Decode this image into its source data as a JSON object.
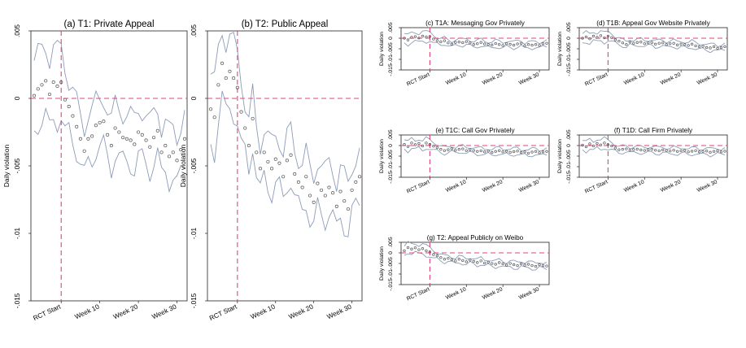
{
  "figure": {
    "background": "#ffffff",
    "accent_dash": "#e0457b",
    "ci_color": "#8c9cb8",
    "point_color": "#555555"
  },
  "chart_data": [
    {
      "type": "line",
      "title": "(a) T1: Private Appeal",
      "ylabel": "Daily violation",
      "ylim": [
        -0.015,
        0.005
      ],
      "yticks": [
        ".005",
        "0",
        "-.005",
        "-.01",
        "-.015"
      ],
      "xticks": [
        "RCT Start",
        "Week 10",
        "Week 20",
        "Week 30"
      ],
      "grid": false,
      "series": [
        {
          "values": [
            0.0002,
            0.0007,
            0.001,
            0.0013,
            0.0003,
            0.0012,
            0.0009,
            0.0012,
            -0.0001,
            -0.0006,
            -0.0013,
            -0.0021,
            -0.003,
            -0.0039,
            -0.003,
            -0.0028,
            -0.002,
            -0.0018,
            -0.0017,
            -0.0027,
            -0.0035,
            -0.0022,
            -0.0025,
            -0.0029,
            -0.003,
            -0.0031,
            -0.0034,
            -0.0025,
            -0.0027,
            -0.0031,
            -0.0036,
            -0.0029,
            -0.0024,
            -0.004,
            -0.0035,
            -0.0043,
            -0.004,
            -0.0046,
            -0.0038,
            -0.003
          ]
        }
      ]
    },
    {
      "type": "line",
      "title": "(b) T2: Public Appeal",
      "ylabel": "Daily violation",
      "ylim": [
        -0.015,
        0.005
      ],
      "yticks": [
        ".005",
        "0",
        "-.005",
        "-.01",
        "-.015"
      ],
      "xticks": [
        "RCT Start",
        "Week 10",
        "Week 20",
        "Week 30"
      ],
      "grid": false,
      "series": [
        {
          "values": [
            -0.0008,
            -0.0014,
            0.001,
            0.0026,
            0.0015,
            0.002,
            0.0015,
            0.0008,
            -0.001,
            -0.0022,
            -0.0035,
            -0.0015,
            -0.004,
            -0.0052,
            -0.004,
            -0.0047,
            -0.0052,
            -0.0045,
            -0.0048,
            -0.0058,
            -0.0046,
            -0.0042,
            -0.0056,
            -0.0062,
            -0.0066,
            -0.0058,
            -0.0072,
            -0.0077,
            -0.0063,
            -0.0068,
            -0.0072,
            -0.0066,
            -0.007,
            -0.008,
            -0.0069,
            -0.0076,
            -0.0082,
            -0.0068,
            -0.0062,
            -0.0058
          ]
        }
      ]
    },
    {
      "type": "line",
      "title": "(c) T1A: Messaging Gov Privately",
      "ylabel": "Daily violation",
      "ylim": [
        -0.015,
        0.005
      ],
      "yticks": [
        ".005",
        "0",
        "-.005",
        "-.01",
        "-.015"
      ],
      "xticks": [
        "RCT Start",
        "Week 10",
        "Week 20",
        "Week 30"
      ],
      "grid": false,
      "series": [
        {
          "values": [
            0.0,
            -0.0008,
            0.0004,
            0.0007,
            0.0001,
            0.001,
            0.0006,
            0.0008,
            -0.0004,
            -0.0012,
            -0.0017,
            -0.0012,
            -0.0022,
            -0.0028,
            -0.002,
            -0.0018,
            -0.0021,
            -0.0016,
            -0.0022,
            -0.003,
            -0.0026,
            -0.002,
            -0.0027,
            -0.003,
            -0.0032,
            -0.0025,
            -0.003,
            -0.0034,
            -0.0026,
            -0.0029,
            -0.0033,
            -0.0027,
            -0.0024,
            -0.0036,
            -0.003,
            -0.0033,
            -0.003,
            -0.0034,
            -0.0026,
            -0.0024
          ]
        }
      ]
    },
    {
      "type": "line",
      "title": "(d) T1B: Appeal Gov Website Privately",
      "ylabel": "Daily violation",
      "ylim": [
        -0.015,
        0.005
      ],
      "yticks": [
        ".005",
        "0",
        "-.005",
        "-.01",
        "-.015"
      ],
      "xticks": [
        "RCT Start",
        "Week 10",
        "Week 20",
        "Week 30"
      ],
      "grid": false,
      "series": [
        {
          "values": [
            0.0,
            0.0006,
            -0.0003,
            0.001,
            0.0004,
            0.0012,
            0.0002,
            0.001,
            0.0003,
            -0.0008,
            -0.0014,
            -0.0022,
            -0.003,
            -0.0018,
            -0.0024,
            -0.002,
            -0.0018,
            -0.0026,
            -0.0022,
            -0.002,
            -0.0028,
            -0.0024,
            -0.0022,
            -0.003,
            -0.0026,
            -0.0024,
            -0.0032,
            -0.0028,
            -0.003,
            -0.0034,
            -0.0028,
            -0.0036,
            -0.004,
            -0.0038,
            -0.0044,
            -0.0046,
            -0.004,
            -0.0048,
            -0.0044,
            -0.004
          ]
        }
      ]
    },
    {
      "type": "line",
      "title": "(e) T1C: Call Gov Privately",
      "ylabel": "Daily violation",
      "ylim": [
        -0.015,
        0.005
      ],
      "yticks": [
        ".005",
        "0",
        "-.005",
        "-.01",
        "-.015"
      ],
      "xticks": [
        "RCT Start",
        "Week 10",
        "Week 20",
        "Week 30"
      ],
      "grid": false,
      "series": [
        {
          "values": [
            0.0005,
            -0.0005,
            0.0012,
            0.0004,
            0.001,
            -0.0002,
            0.0012,
            0.0005,
            -0.0003,
            -0.001,
            -0.0018,
            -0.0024,
            -0.002,
            -0.0015,
            -0.0022,
            -0.0018,
            -0.0016,
            -0.0024,
            -0.002,
            -0.0023,
            -0.0028,
            -0.0025,
            -0.003,
            -0.0026,
            -0.0033,
            -0.0028,
            -0.0024,
            -0.003,
            -0.0027,
            -0.0032,
            -0.0029,
            -0.0026,
            -0.0033,
            -0.003,
            -0.0036,
            -0.0031,
            -0.0028,
            -0.0034,
            -0.003,
            -0.0028
          ]
        }
      ]
    },
    {
      "type": "line",
      "title": "(f) T1D: Call Firm Privately",
      "ylabel": "Daily violation",
      "ylim": [
        -0.015,
        0.005
      ],
      "yticks": [
        ".005",
        "0",
        "-.005",
        "-.01",
        "-.015"
      ],
      "xticks": [
        "RCT Start",
        "Week 10",
        "Week 20",
        "Week 30"
      ],
      "grid": false,
      "series": [
        {
          "values": [
            0.0002,
            -0.0006,
            0.0008,
            -0.0002,
            0.001,
            0.0003,
            0.0012,
            0.0004,
            -0.0002,
            -0.0012,
            -0.002,
            -0.0018,
            -0.0016,
            -0.0022,
            -0.0019,
            -0.0017,
            -0.0021,
            -0.0023,
            -0.002,
            -0.0018,
            -0.0022,
            -0.0025,
            -0.0021,
            -0.0024,
            -0.0026,
            -0.0022,
            -0.0028,
            -0.0025,
            -0.0023,
            -0.003,
            -0.0027,
            -0.0024,
            -0.003,
            -0.0028,
            -0.0026,
            -0.0032,
            -0.0028,
            -0.0025,
            -0.003,
            -0.0027
          ]
        }
      ]
    },
    {
      "type": "line",
      "title": "(g) T2: Appeal Publicly on Weibo",
      "ylabel": "Daily violation",
      "ylim": [
        -0.015,
        0.005
      ],
      "yticks": [
        ".005",
        "0",
        "-.005",
        "-.01",
        "-.015"
      ],
      "xticks": [
        "RCT Start",
        "Week 10",
        "Week 20",
        "Week 30"
      ],
      "grid": false,
      "series": [
        {
          "values": [
            0.001,
            0.0025,
            0.0018,
            0.0024,
            0.0015,
            0.002,
            0.001,
            0.0004,
            -0.0008,
            -0.0014,
            -0.0022,
            -0.003,
            -0.0026,
            -0.0032,
            -0.0038,
            -0.003,
            -0.0036,
            -0.0042,
            -0.0034,
            -0.004,
            -0.0046,
            -0.0038,
            -0.0048,
            -0.0044,
            -0.005,
            -0.0054,
            -0.0046,
            -0.0052,
            -0.0058,
            -0.005,
            -0.0056,
            -0.006,
            -0.0052,
            -0.0058,
            -0.0054,
            -0.006,
            -0.0064,
            -0.0056,
            -0.006,
            -0.0062
          ]
        }
      ]
    }
  ]
}
